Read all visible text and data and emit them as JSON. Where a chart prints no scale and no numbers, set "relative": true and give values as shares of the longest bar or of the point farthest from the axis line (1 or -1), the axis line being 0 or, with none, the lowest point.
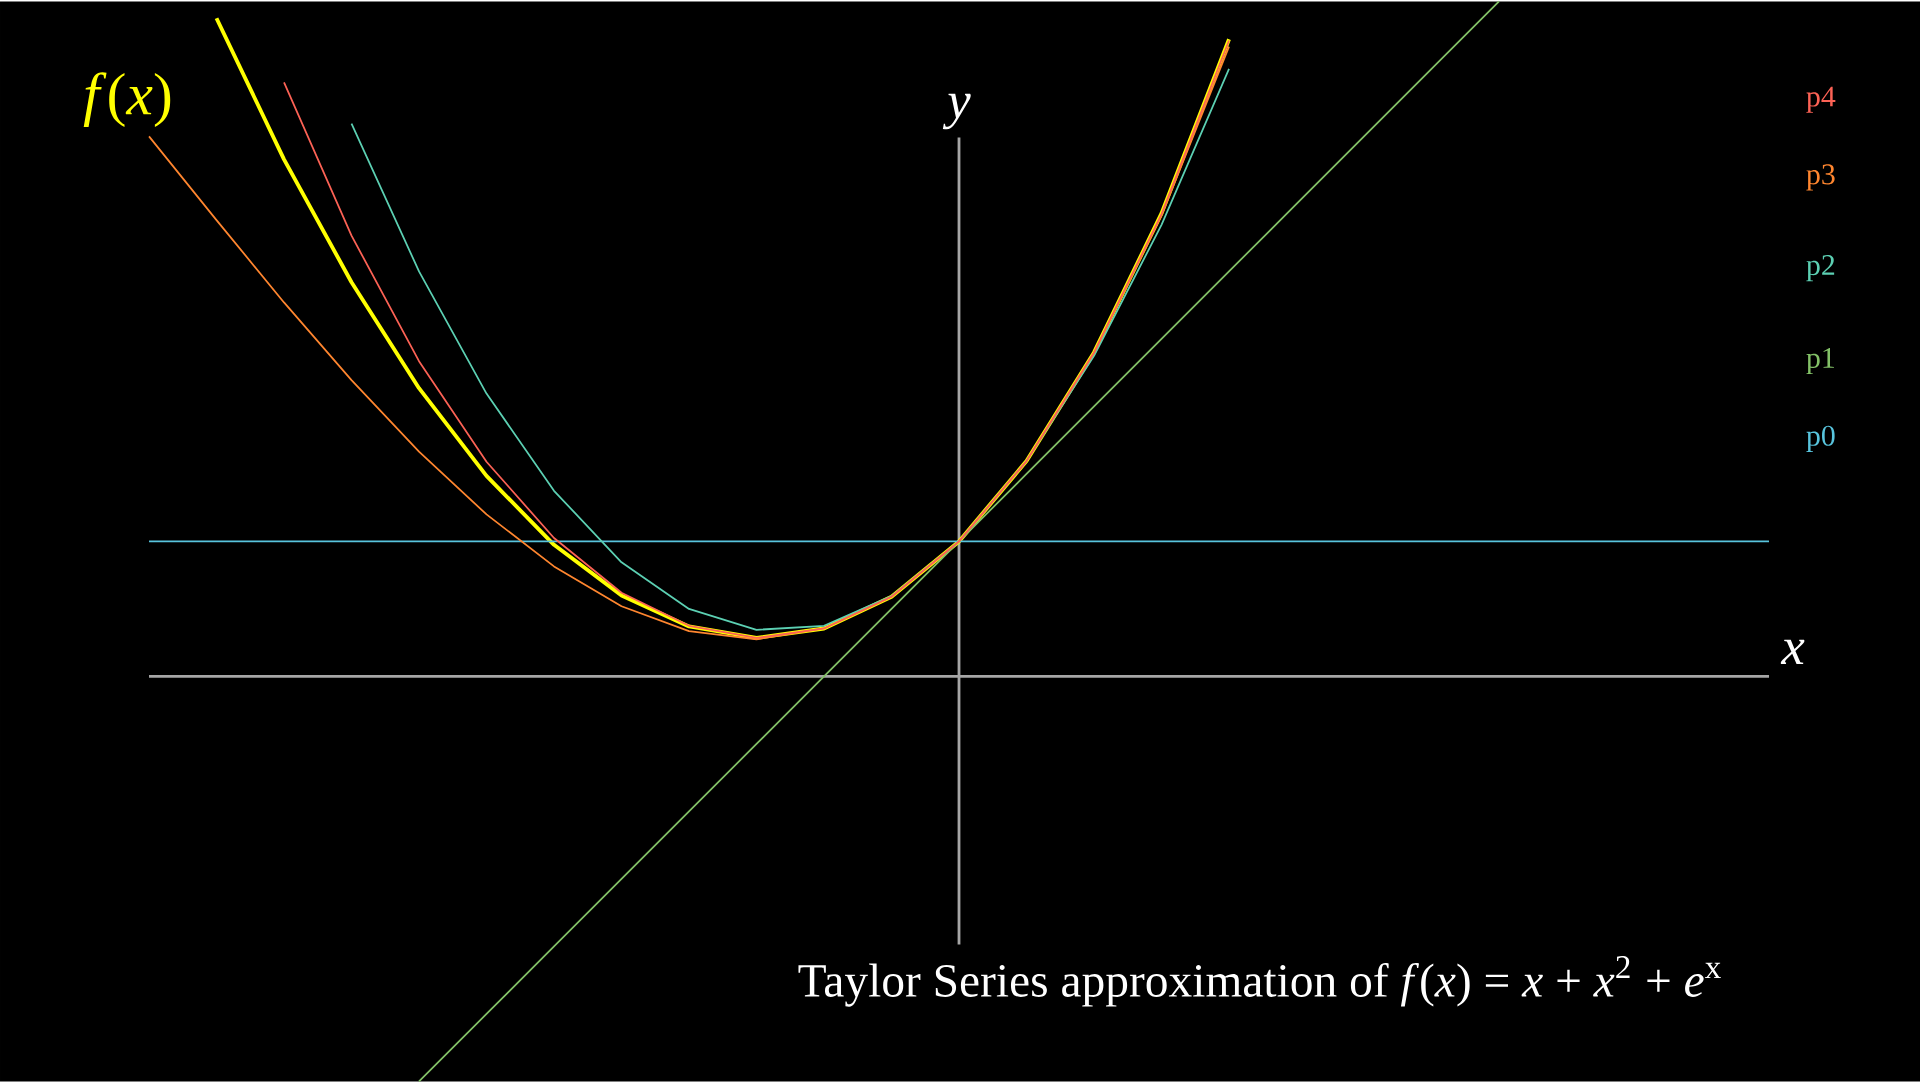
{
  "chart_data": {
    "type": "line",
    "relative": true,
    "title": "Taylor Series approximation of *f*(*x*) = *x* + *x*$^{2}$ + *e*$^{x}$",
    "xlabel": "*x*",
    "ylabel": "*y*",
    "categories": [
      null,
      null,
      null,
      null,
      null,
      null,
      null,
      null,
      null,
      null,
      null,
      null,
      null,
      null,
      null,
      null,
      null,
      null,
      null,
      null,
      null,
      null,
      null,
      null,
      null
    ],
    "series": [
      {
        "name": "*f*(*x*)",
        "color": "#ffff00",
        "values": [
          null,
          0.975,
          0.766,
          0.584,
          0.427,
          0.297,
          0.195,
          0.12,
          0.074,
          0.057,
          0.071,
          0.118,
          0.2,
          0.319,
          0.48,
          0.686,
          0.944,
          null,
          null,
          null,
          null,
          null,
          null,
          null,
          null
        ]
      },
      {
        "name": "p0",
        "color": "#58c4dd",
        "values": [
          0.2,
          0.2,
          0.2,
          0.2,
          0.2,
          0.2,
          0.2,
          0.2,
          0.2,
          0.2,
          0.2,
          0.2,
          0.2,
          0.2,
          0.2,
          0.2,
          0.2,
          0.2,
          0.2,
          0.2,
          0.2,
          0.2,
          0.2,
          0.2,
          0.2
        ]
      },
      {
        "name": "p1",
        "color": "#83c167",
        "values": [
          null,
          null,
          null,
          null,
          -0.6,
          -0.5,
          -0.4,
          -0.3,
          -0.2,
          -0.1,
          0,
          0.1,
          0.2,
          0.3,
          0.4,
          0.5,
          0.6,
          0.7,
          0.8,
          0.9,
          1,
          null,
          null,
          null,
          null
        ]
      },
      {
        "name": "p2",
        "color": "#5cd0b3",
        "values": [
          null,
          null,
          null,
          0.819,
          0.6,
          0.419,
          0.275,
          0.169,
          0.1,
          0.069,
          0.075,
          0.119,
          0.2,
          0.319,
          0.475,
          0.669,
          0.9,
          null,
          null,
          null,
          null,
          null,
          null,
          null,
          null
        ]
      },
      {
        "name": "p3",
        "color": "#ff862f",
        "values": [
          0.8,
          0.676,
          0.554,
          0.439,
          0.333,
          0.24,
          0.163,
          0.104,
          0.067,
          0.055,
          0.071,
          0.118,
          0.2,
          0.319,
          0.479,
          0.683,
          0.933,
          null,
          null,
          null,
          null,
          null,
          null,
          null,
          null
        ]
      },
      {
        "name": "p4",
        "color": "#fc6255",
        "values": [
          null,
          null,
          0.88,
          0.653,
          0.467,
          0.318,
          0.205,
          0.124,
          0.075,
          0.057,
          0.071,
          0.118,
          0.2,
          0.319,
          0.48,
          0.685,
          0.942,
          null,
          null,
          null,
          null,
          null,
          null,
          null,
          null
        ]
      }
    ]
  }
}
